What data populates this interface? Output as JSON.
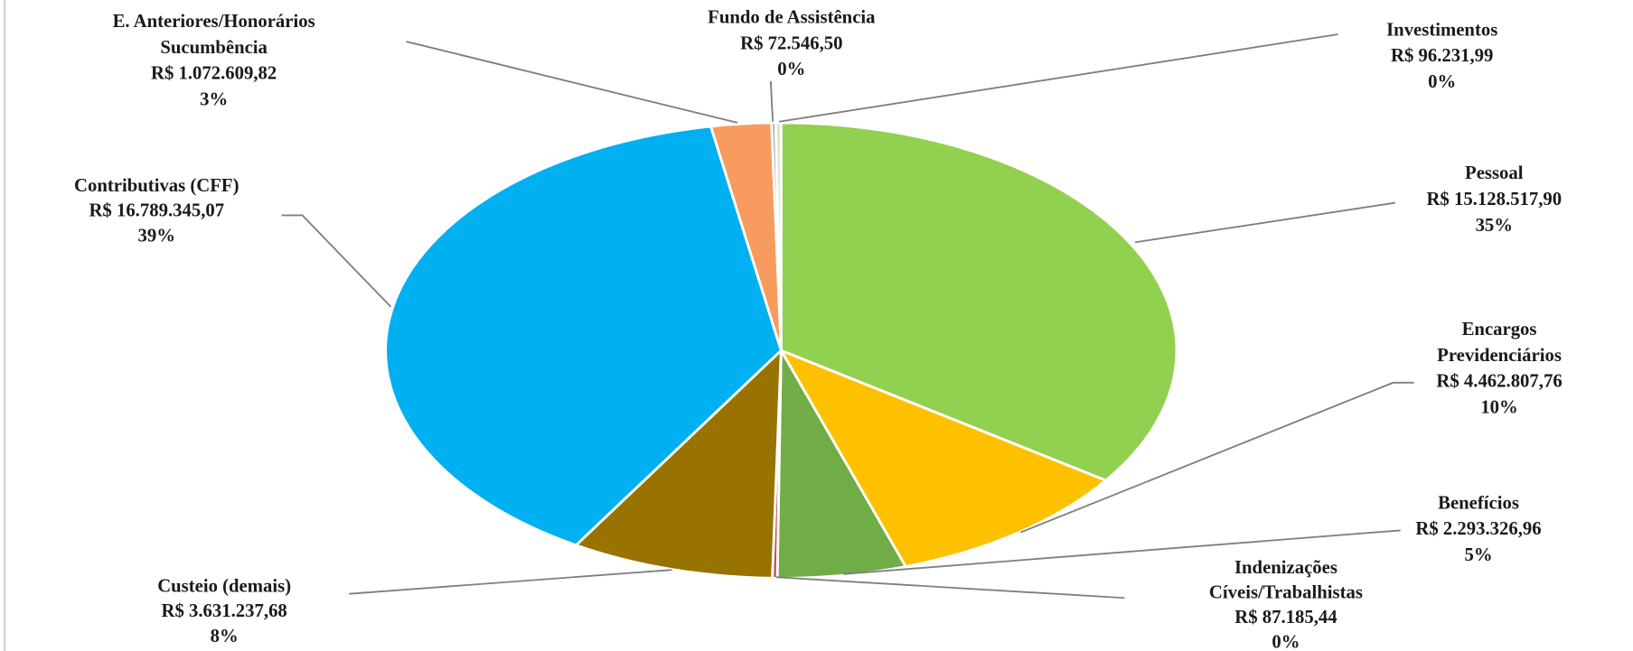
{
  "chart_data": {
    "type": "pie",
    "categories": [
      [
        "Pessoal"
      ],
      [
        "Encargos",
        "Previdenciários"
      ],
      [
        "Benefícios"
      ],
      [
        "Indenizações",
        "Cíveis/Trabalhistas"
      ],
      [
        "Custeio (demais)"
      ],
      [
        "Contributivas (CFF)"
      ],
      [
        "E. Anteriores/Honorários",
        "Sucumbência"
      ],
      [
        "Fundo de Assistência"
      ],
      [
        "Investimentos"
      ]
    ],
    "values": [
      15128517.9,
      4462807.76,
      2293326.96,
      87185.44,
      3631237.68,
      16789345.07,
      1072609.82,
      72546.5,
      96231.99
    ],
    "value_labels": [
      "R$ 15.128.517,90",
      "R$ 4.462.807,76",
      "R$ 2.293.326,96",
      "R$ 87.185,44",
      "R$ 3.631.237,68",
      "R$ 16.789.345,07",
      "R$ 1.072.609,82",
      "R$ 72.546,50",
      "R$ 96.231,99"
    ],
    "percent_labels": [
      "35%",
      "10%",
      "5%",
      "0%",
      "8%",
      "39%",
      "3%",
      "0%",
      "0%"
    ],
    "colors": [
      "#92d050",
      "#ffc000",
      "#70ad47",
      "#c0504d",
      "#997300",
      "#00b0f0",
      "#f79b5f",
      "#a5a5a5",
      "#d9e8c4"
    ]
  }
}
